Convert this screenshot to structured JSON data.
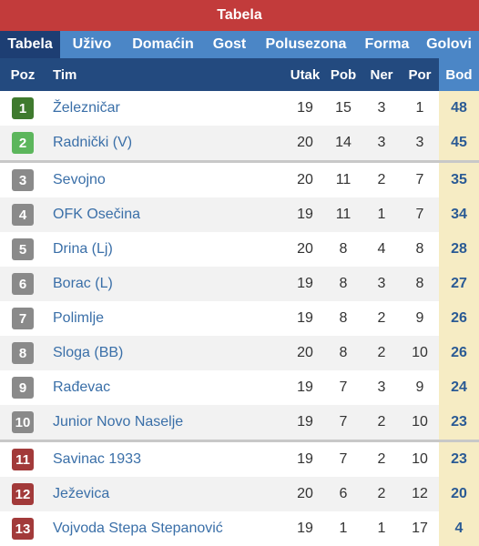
{
  "title": "Tabela",
  "tabs": [
    "Tabela",
    "Uživo",
    "Domaćin",
    "Gost",
    "Polusezona",
    "Forma",
    "Golovi"
  ],
  "headers": {
    "poz": "Poz",
    "tim": "Tim",
    "utak": "Utak",
    "pob": "Pob",
    "ner": "Ner",
    "por": "Por",
    "bod": "Bod"
  },
  "colors": {
    "promotion": "#3f7a2e",
    "qualify": "#5cb65c",
    "neutral": "#8a8a8a",
    "relegation": "#a23a3a",
    "header": "#234a7f",
    "title": "#c23b3b"
  },
  "rows": [
    {
      "poz": "1",
      "tim": "Železničar",
      "utak": "19",
      "pob": "15",
      "ner": "3",
      "por": "1",
      "bod": "48",
      "zone": "promotion"
    },
    {
      "poz": "2",
      "tim": "Radnički (V)",
      "utak": "20",
      "pob": "14",
      "ner": "3",
      "por": "3",
      "bod": "45",
      "zone": "qualify"
    },
    {
      "poz": "3",
      "tim": "Sevojno",
      "utak": "20",
      "pob": "11",
      "ner": "2",
      "por": "7",
      "bod": "35",
      "zone": "neutral"
    },
    {
      "poz": "4",
      "tim": "OFK Osečina",
      "utak": "19",
      "pob": "11",
      "ner": "1",
      "por": "7",
      "bod": "34",
      "zone": "neutral"
    },
    {
      "poz": "5",
      "tim": "Drina (Lj)",
      "utak": "20",
      "pob": "8",
      "ner": "4",
      "por": "8",
      "bod": "28",
      "zone": "neutral"
    },
    {
      "poz": "6",
      "tim": "Borac (L)",
      "utak": "19",
      "pob": "8",
      "ner": "3",
      "por": "8",
      "bod": "27",
      "zone": "neutral"
    },
    {
      "poz": "7",
      "tim": "Polimlje",
      "utak": "19",
      "pob": "8",
      "ner": "2",
      "por": "9",
      "bod": "26",
      "zone": "neutral"
    },
    {
      "poz": "8",
      "tim": "Sloga (BB)",
      "utak": "20",
      "pob": "8",
      "ner": "2",
      "por": "10",
      "bod": "26",
      "zone": "neutral"
    },
    {
      "poz": "9",
      "tim": "Rađevac",
      "utak": "19",
      "pob": "7",
      "ner": "3",
      "por": "9",
      "bod": "24",
      "zone": "neutral"
    },
    {
      "poz": "10",
      "tim": "Junior Novo Naselje",
      "utak": "19",
      "pob": "7",
      "ner": "2",
      "por": "10",
      "bod": "23",
      "zone": "neutral"
    },
    {
      "poz": "11",
      "tim": "Savinac 1933",
      "utak": "19",
      "pob": "7",
      "ner": "2",
      "por": "10",
      "bod": "23",
      "zone": "relegation"
    },
    {
      "poz": "12",
      "tim": "Ježevica",
      "utak": "20",
      "pob": "6",
      "ner": "2",
      "por": "12",
      "bod": "20",
      "zone": "relegation"
    },
    {
      "poz": "13",
      "tim": "Vojvoda Stepa Stepanović",
      "utak": "19",
      "pob": "1",
      "ner": "1",
      "por": "17",
      "bod": "4",
      "zone": "relegation"
    }
  ]
}
